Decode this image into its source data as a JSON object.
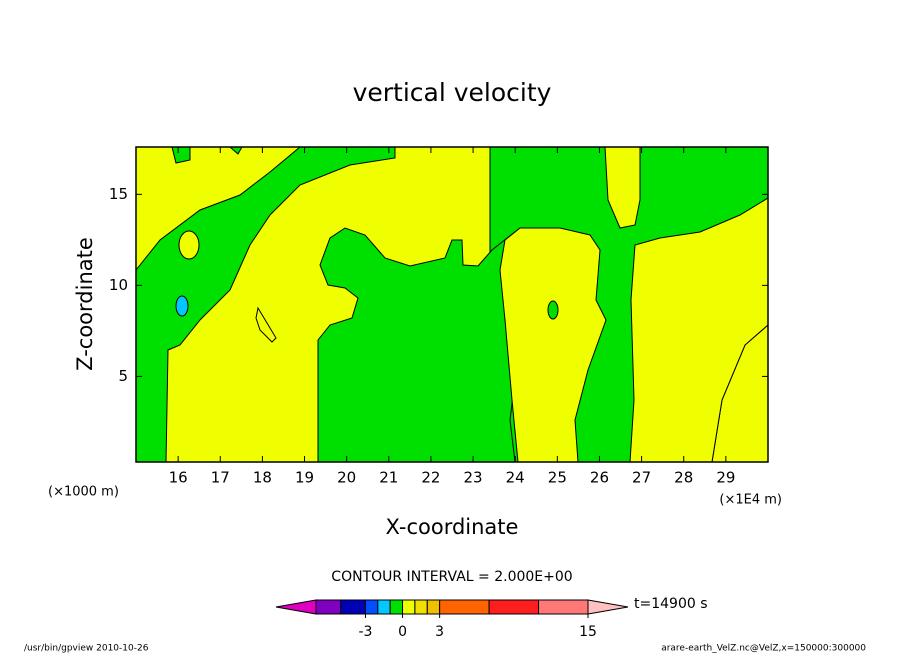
{
  "chart_data": {
    "type": "contour",
    "title": "vertical velocity",
    "xlabel": "X-coordinate",
    "ylabel": "Z-coordinate",
    "x_unit": "(×1E4 m)",
    "y_unit": "(×1000 m)",
    "xlim": [
      15,
      30
    ],
    "xticks": [
      16,
      17,
      18,
      19,
      20,
      21,
      22,
      23,
      24,
      25,
      26,
      27,
      28,
      29
    ],
    "ylim": [
      0.3,
      17.6
    ],
    "yticks": [
      5,
      10,
      15
    ],
    "contour_interval_label": "CONTOUR INTERVAL = 2.000E+00",
    "time_label": "t=14900 s",
    "colorbar": {
      "levels": [
        -7,
        -5,
        -3,
        -2,
        -1,
        0,
        1,
        2,
        3,
        7,
        11,
        15
      ],
      "colors": [
        "#8000c0",
        "#0000b4",
        "#0050ff",
        "#00c8ff",
        "#00e000",
        "#f0ff00",
        "#f0e000",
        "#f0c000",
        "#ff6400",
        "#ff1e1e",
        "#ff7878"
      ],
      "under_color": "#e000c0",
      "over_color": "#ffc0c0",
      "ticks": [
        -3,
        0,
        3,
        15
      ]
    },
    "footer_left": "/usr/bin/gpview  2010-10-26",
    "footer_right": "arare-earth_VelZ.nc@VelZ,x=150000:300000"
  }
}
